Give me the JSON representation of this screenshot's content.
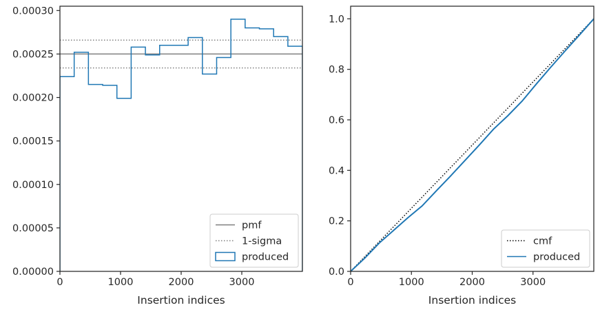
{
  "chart_data": [
    {
      "type": "line",
      "title": "",
      "xlabel": "Insertion indices",
      "ylabel": "",
      "xlim": [
        0,
        4000
      ],
      "ylim": [
        0,
        0.000305
      ],
      "xticks": [
        0,
        1000,
        2000,
        3000
      ],
      "xtick_labels": [
        "0",
        "1000",
        "2000",
        "3000"
      ],
      "yticks": [
        0,
        5e-05,
        0.0001,
        0.00015,
        0.0002,
        0.00025,
        0.0003
      ],
      "ytick_labels": [
        "0.00000",
        "0.00005",
        "0.00010",
        "0.00015",
        "0.00020",
        "0.00025",
        "0.00030"
      ],
      "grid": false,
      "legend_position": "lower-right",
      "series": [
        {
          "name": "pmf",
          "style": "solid",
          "color": "#7f7f7f",
          "x": [
            0,
            4000
          ],
          "y": [
            0.00025,
            0.00025
          ]
        },
        {
          "name": "1-sigma",
          "style": "dotted",
          "color": "#7f7f7f",
          "x": [
            0,
            4000
          ],
          "y": [
            0.000266,
            0.000266
          ]
        },
        {
          "name": "1-sigma",
          "style": "dotted",
          "color": "#7f7f7f",
          "legend": false,
          "x": [
            0,
            4000
          ],
          "y": [
            0.000234,
            0.000234
          ]
        },
        {
          "name": "produced",
          "style": "step-histogram",
          "color": "#1f77b4",
          "bin_edges": [
            0,
            235,
            470,
            705,
            940,
            1175,
            1410,
            1645,
            1880,
            2115,
            2350,
            2585,
            2820,
            3055,
            3290,
            3525,
            3760,
            4000
          ],
          "values": [
            0.000224,
            0.000252,
            0.000215,
            0.000214,
            0.000199,
            0.000258,
            0.000249,
            0.00026,
            0.00026,
            0.000269,
            0.000227,
            0.000246,
            0.00029,
            0.00028,
            0.000279,
            0.00027,
            0.000259
          ]
        }
      ]
    },
    {
      "type": "line",
      "title": "",
      "xlabel": "Insertion indices",
      "ylabel": "",
      "xlim": [
        0,
        4000
      ],
      "ylim": [
        0,
        1.05
      ],
      "xticks": [
        0,
        1000,
        2000,
        3000
      ],
      "xtick_labels": [
        "0",
        "1000",
        "2000",
        "3000"
      ],
      "yticks": [
        0,
        0.2,
        0.4,
        0.6,
        0.8,
        1.0
      ],
      "ytick_labels": [
        "0.0",
        "0.2",
        "0.4",
        "0.6",
        "0.8",
        "1.0"
      ],
      "grid": false,
      "legend_position": "lower-right",
      "series": [
        {
          "name": "cmf",
          "style": "dotted",
          "color": "#000000",
          "x": [
            0,
            4000
          ],
          "y": [
            0,
            1.0
          ]
        },
        {
          "name": "produced",
          "style": "solid",
          "color": "#1f77b4",
          "x": [
            0,
            235,
            470,
            705,
            940,
            1175,
            1410,
            1645,
            1880,
            2115,
            2350,
            2585,
            2820,
            3055,
            3290,
            3525,
            3760,
            4000
          ],
          "y": [
            0,
            0.053,
            0.112,
            0.162,
            0.212,
            0.259,
            0.319,
            0.378,
            0.439,
            0.5,
            0.563,
            0.616,
            0.674,
            0.742,
            0.808,
            0.872,
            0.935,
            1.0
          ]
        }
      ]
    }
  ]
}
